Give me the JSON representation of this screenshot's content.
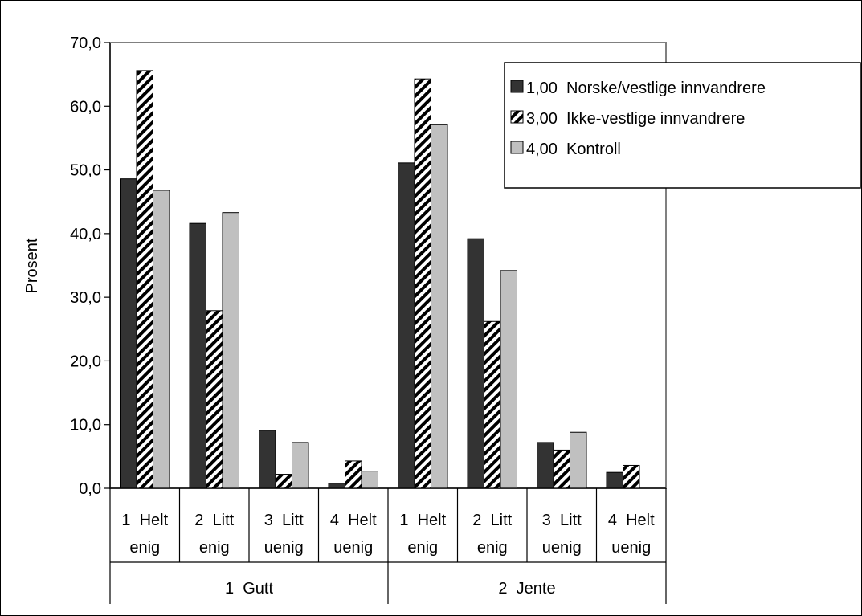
{
  "chart_data": {
    "type": "bar",
    "ylabel": "Prosent",
    "ylim": [
      0,
      70
    ],
    "ytick_step": 10,
    "ytick_labels": [
      "0,0",
      "10,0",
      "20,0",
      "30,0",
      "40,0",
      "50,0",
      "60,0",
      "70,0"
    ],
    "legend_position": "top-right",
    "groups": [
      {
        "label": "1  Gutt",
        "categories": [
          [
            "1  Helt",
            "enig"
          ],
          [
            "2  Litt",
            "enig"
          ],
          [
            "3  Litt",
            "uenig"
          ],
          [
            "4  Helt",
            "uenig"
          ]
        ]
      },
      {
        "label": "2  Jente",
        "categories": [
          [
            "1  Helt",
            "enig"
          ],
          [
            "2  Litt",
            "enig"
          ],
          [
            "3  Litt",
            "uenig"
          ],
          [
            "4  Helt",
            "uenig"
          ]
        ]
      }
    ],
    "series": [
      {
        "name": "1,00  Norske/vestlige innvandrere",
        "fill": "#333333",
        "pattern": "solid",
        "values": [
          48.6,
          41.6,
          9.1,
          0.8,
          51.1,
          39.2,
          7.2,
          2.5
        ]
      },
      {
        "name": "3,00  Ikke-vestlige innvandrere",
        "fill": "#ffffff",
        "pattern": "hatch",
        "values": [
          65.6,
          27.9,
          2.2,
          4.3,
          64.3,
          26.2,
          6.0,
          3.6
        ]
      },
      {
        "name": "4,00  Kontroll",
        "fill": "#c0c0c0",
        "pattern": "solid",
        "values": [
          46.8,
          43.3,
          7.2,
          2.7,
          57.1,
          34.2,
          8.8,
          null
        ]
      }
    ]
  }
}
